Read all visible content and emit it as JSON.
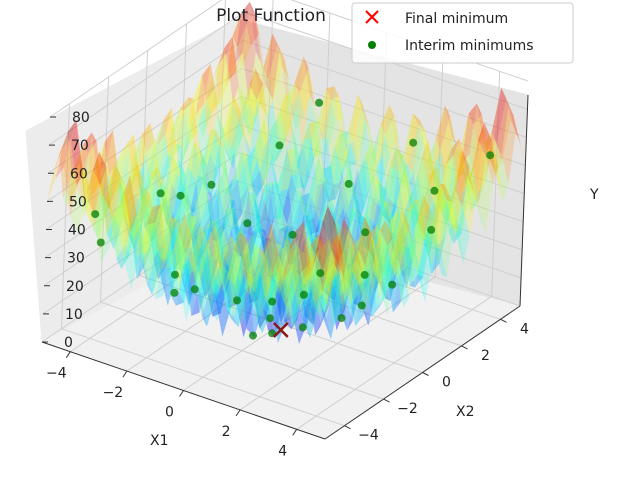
{
  "chart_data": {
    "type": "surface3d",
    "title": "Plot Function",
    "xlabel": "X1",
    "ylabel": "X2",
    "zlabel": "Y",
    "xlim": [
      -5,
      5
    ],
    "ylim": [
      -5,
      5
    ],
    "zlim": [
      0,
      80
    ],
    "x_ticks": [
      "−4",
      "−2",
      "0",
      "2",
      "4"
    ],
    "y_ticks": [
      "−4",
      "−2",
      "0",
      "2",
      "4"
    ],
    "z_ticks": [
      "0",
      "10",
      "20",
      "30",
      "40",
      "50",
      "60",
      "70",
      "80"
    ],
    "surface": "Rastrigin-like function over x1, x2 in [-5, 5], z in 0-80 (jet colormap, semi-transparent)",
    "legend": {
      "placement": "top-right",
      "entries": [
        {
          "label": "Final minimum",
          "marker": "x",
          "color": "#ff0000"
        },
        {
          "label": "Interim minimums",
          "marker": "o",
          "color": "#008000"
        }
      ]
    },
    "final_minimum": {
      "x1": 0.2,
      "x2": -0.3,
      "y": 0
    },
    "interim_minimums": [
      {
        "x1": -4.4,
        "x2": -3.0,
        "y": 28
      },
      {
        "x1": -3.6,
        "x2": 1.5,
        "y": 30
      },
      {
        "x1": -3.0,
        "x2": -1.0,
        "y": 40
      },
      {
        "x1": -2.6,
        "x2": 3.5,
        "y": 38
      },
      {
        "x1": -2.3,
        "x2": -2.2,
        "y": 20
      },
      {
        "x1": -1.9,
        "x2": 0.9,
        "y": 25
      },
      {
        "x1": -1.5,
        "x2": -3.4,
        "y": 22
      },
      {
        "x1": -1.1,
        "x2": 2.1,
        "y": 18
      },
      {
        "x1": -0.9,
        "x2": -1.0,
        "y": 10
      },
      {
        "x1": -0.4,
        "x2": 3.9,
        "y": 30
      },
      {
        "x1": 0.1,
        "x2": 1.0,
        "y": 6
      },
      {
        "x1": 0.5,
        "x2": -2.2,
        "y": 8
      },
      {
        "x1": 0.9,
        "x2": 2.9,
        "y": 22
      },
      {
        "x1": 1.1,
        "x2": -0.5,
        "y": 5
      },
      {
        "x1": 1.6,
        "x2": 1.9,
        "y": 14
      },
      {
        "x1": 2.0,
        "x2": -3.6,
        "y": 26
      },
      {
        "x1": 2.4,
        "x2": 0.6,
        "y": 12
      },
      {
        "x1": 2.8,
        "x2": 3.6,
        "y": 40
      },
      {
        "x1": 3.3,
        "x2": -1.8,
        "y": 22
      },
      {
        "x1": 3.6,
        "x2": 2.3,
        "y": 35
      },
      {
        "x1": 4.1,
        "x2": -0.4,
        "y": 30
      },
      {
        "x1": 4.3,
        "x2": 4.2,
        "y": 55
      },
      {
        "x1": -3.9,
        "x2": -4.1,
        "y": 45
      },
      {
        "x1": -0.2,
        "x2": -4.3,
        "y": 32
      },
      {
        "x1": 1.4,
        "x2": 4.5,
        "y": 48
      },
      {
        "x1": -2.0,
        "x2": 4.6,
        "y": 50
      },
      {
        "x1": 3.9,
        "x2": -3.9,
        "y": 50
      },
      {
        "x1": -4.5,
        "x2": 0.2,
        "y": 30
      },
      {
        "x1": 0.3,
        "x2": -0.9,
        "y": 2
      },
      {
        "x1": -0.6,
        "x2": 0.4,
        "y": 4
      }
    ]
  }
}
